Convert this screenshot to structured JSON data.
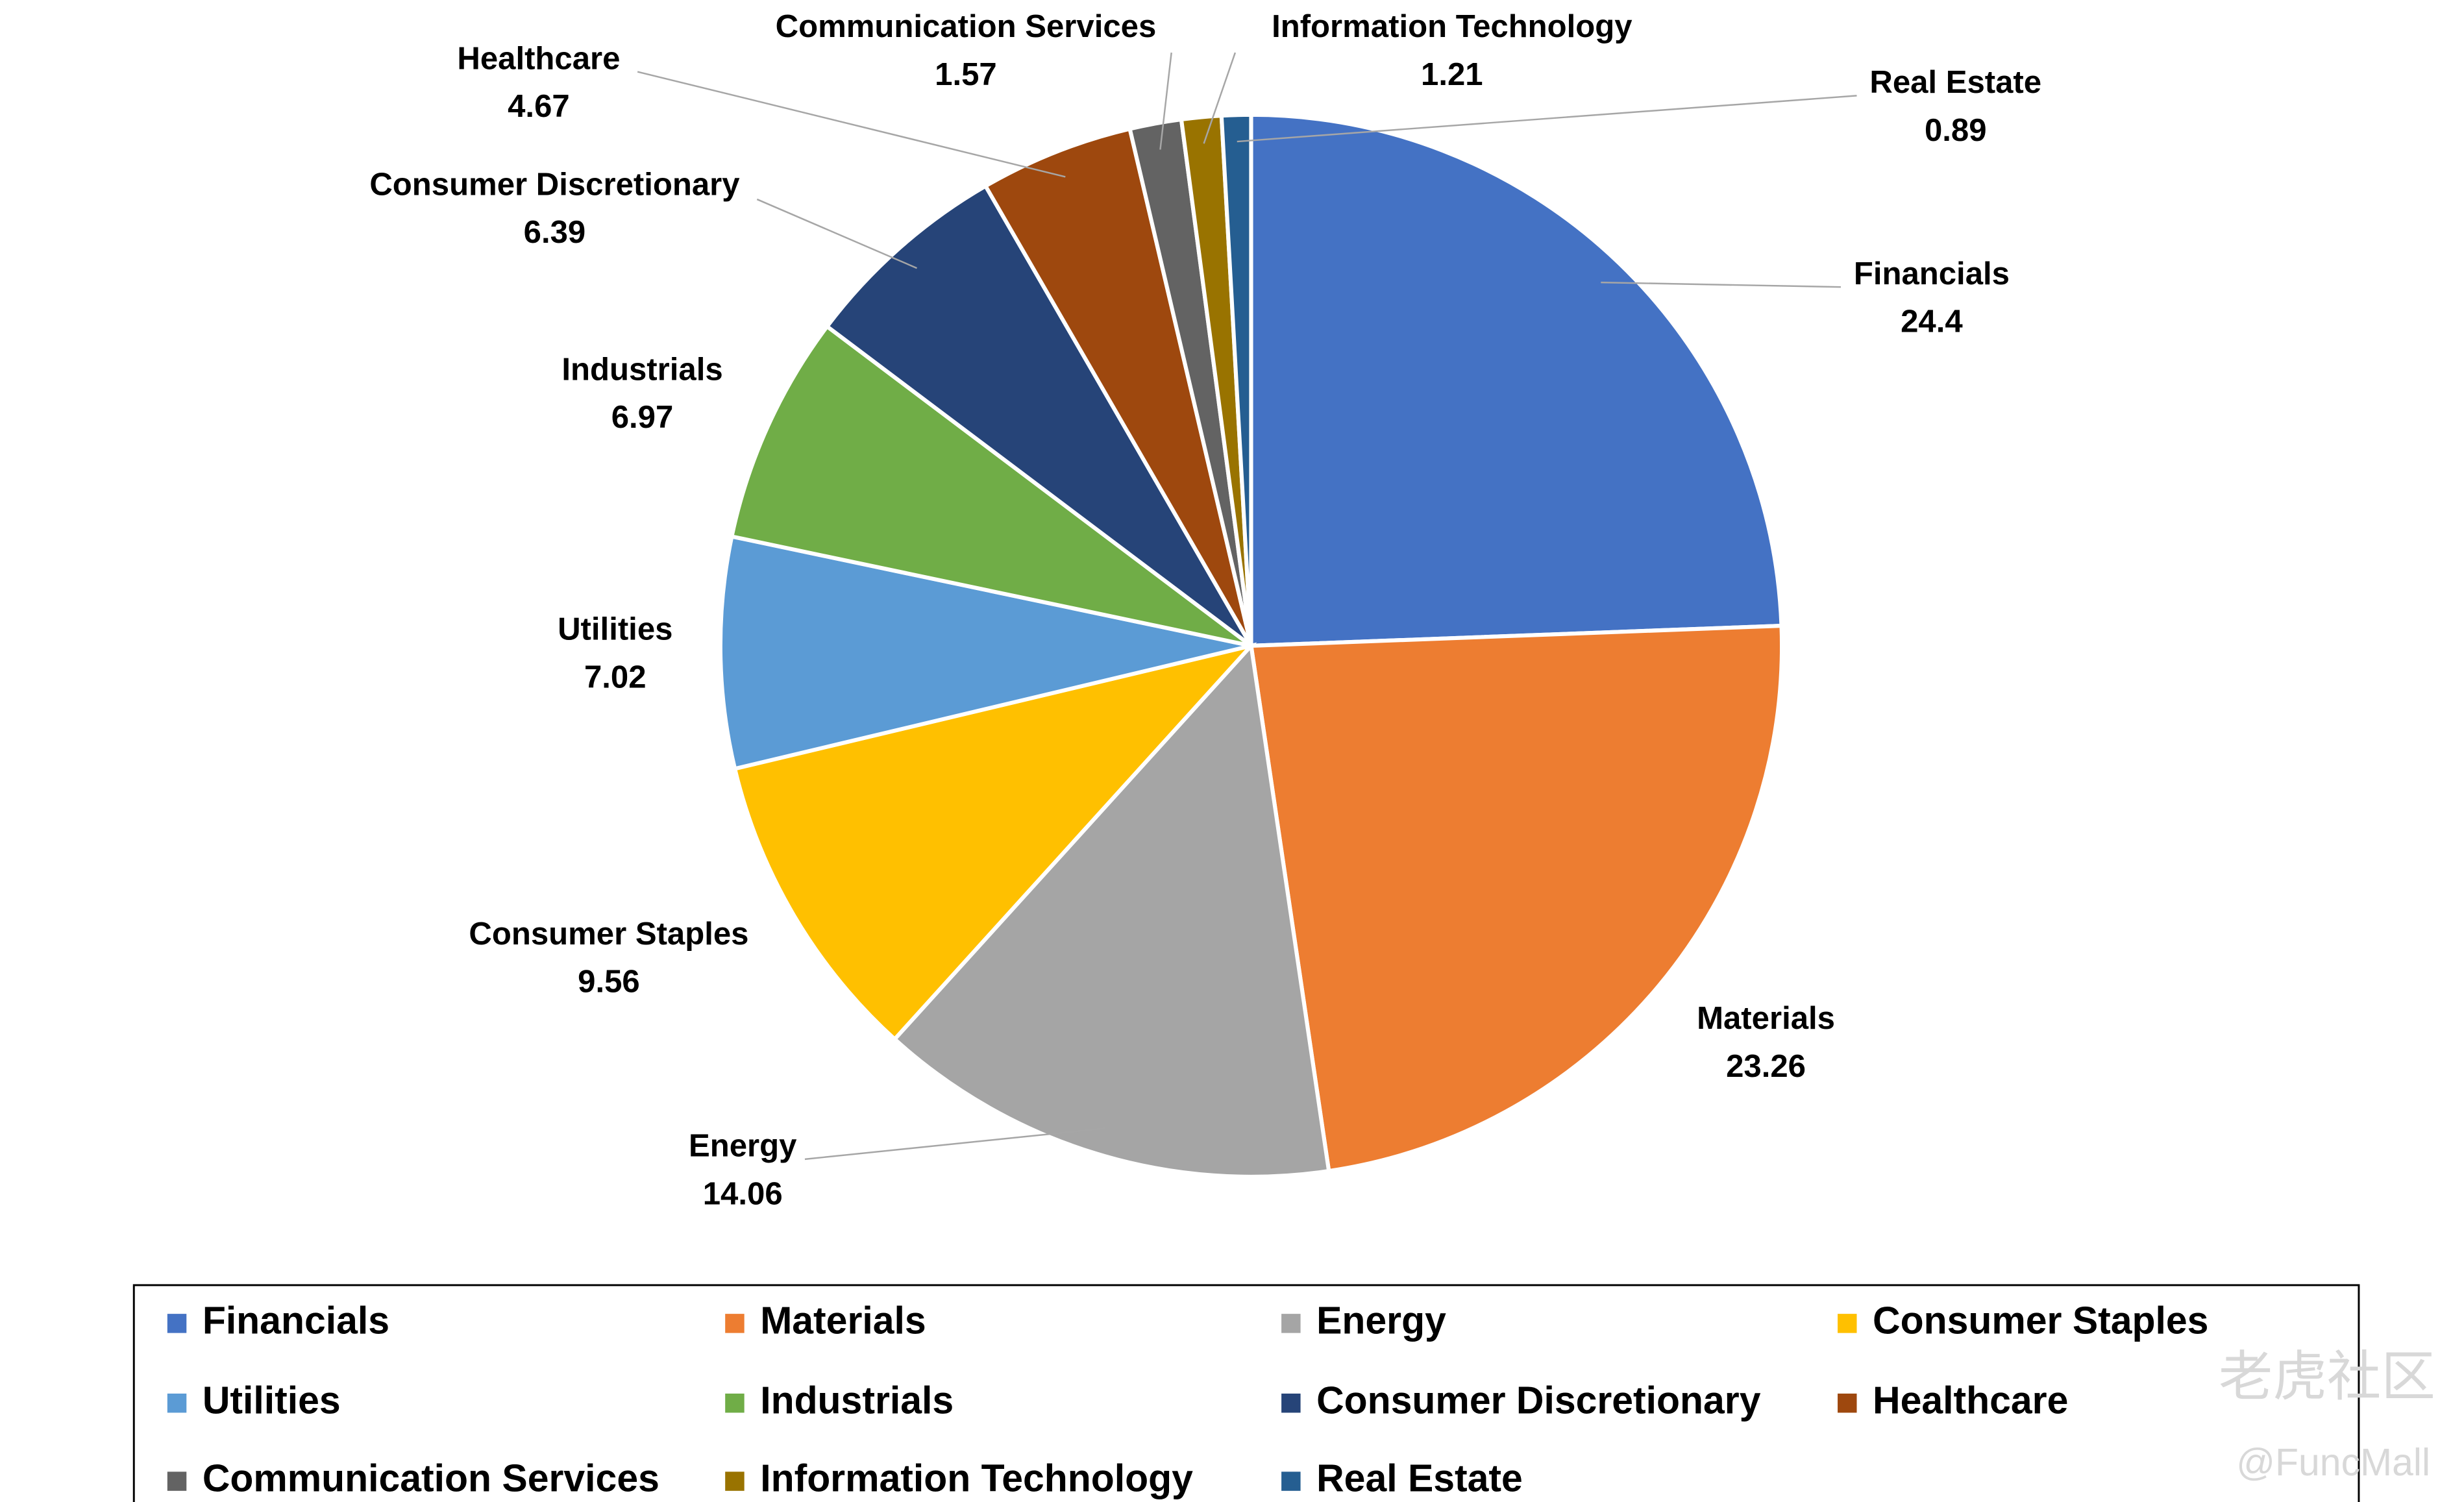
{
  "chart_data": {
    "type": "pie",
    "categories": [
      "Financials",
      "Materials",
      "Energy",
      "Consumer Staples",
      "Utilities",
      "Industrials",
      "Consumer Discretionary",
      "Healthcare",
      "Communication Services",
      "Information Technology",
      "Real Estate"
    ],
    "values": [
      24.4,
      23.26,
      14.06,
      9.56,
      7.02,
      6.97,
      6.39,
      4.67,
      1.57,
      1.21,
      0.89
    ],
    "colors": [
      "#4472c4",
      "#ed7d31",
      "#a5a5a5",
      "#ffc000",
      "#5b9bd5",
      "#70ad47",
      "#264478",
      "#9e480e",
      "#636363",
      "#997300",
      "#255e91"
    ],
    "legend": "bottom"
  },
  "watermark": [
    "老虎社区",
    "@FuncMall"
  ]
}
